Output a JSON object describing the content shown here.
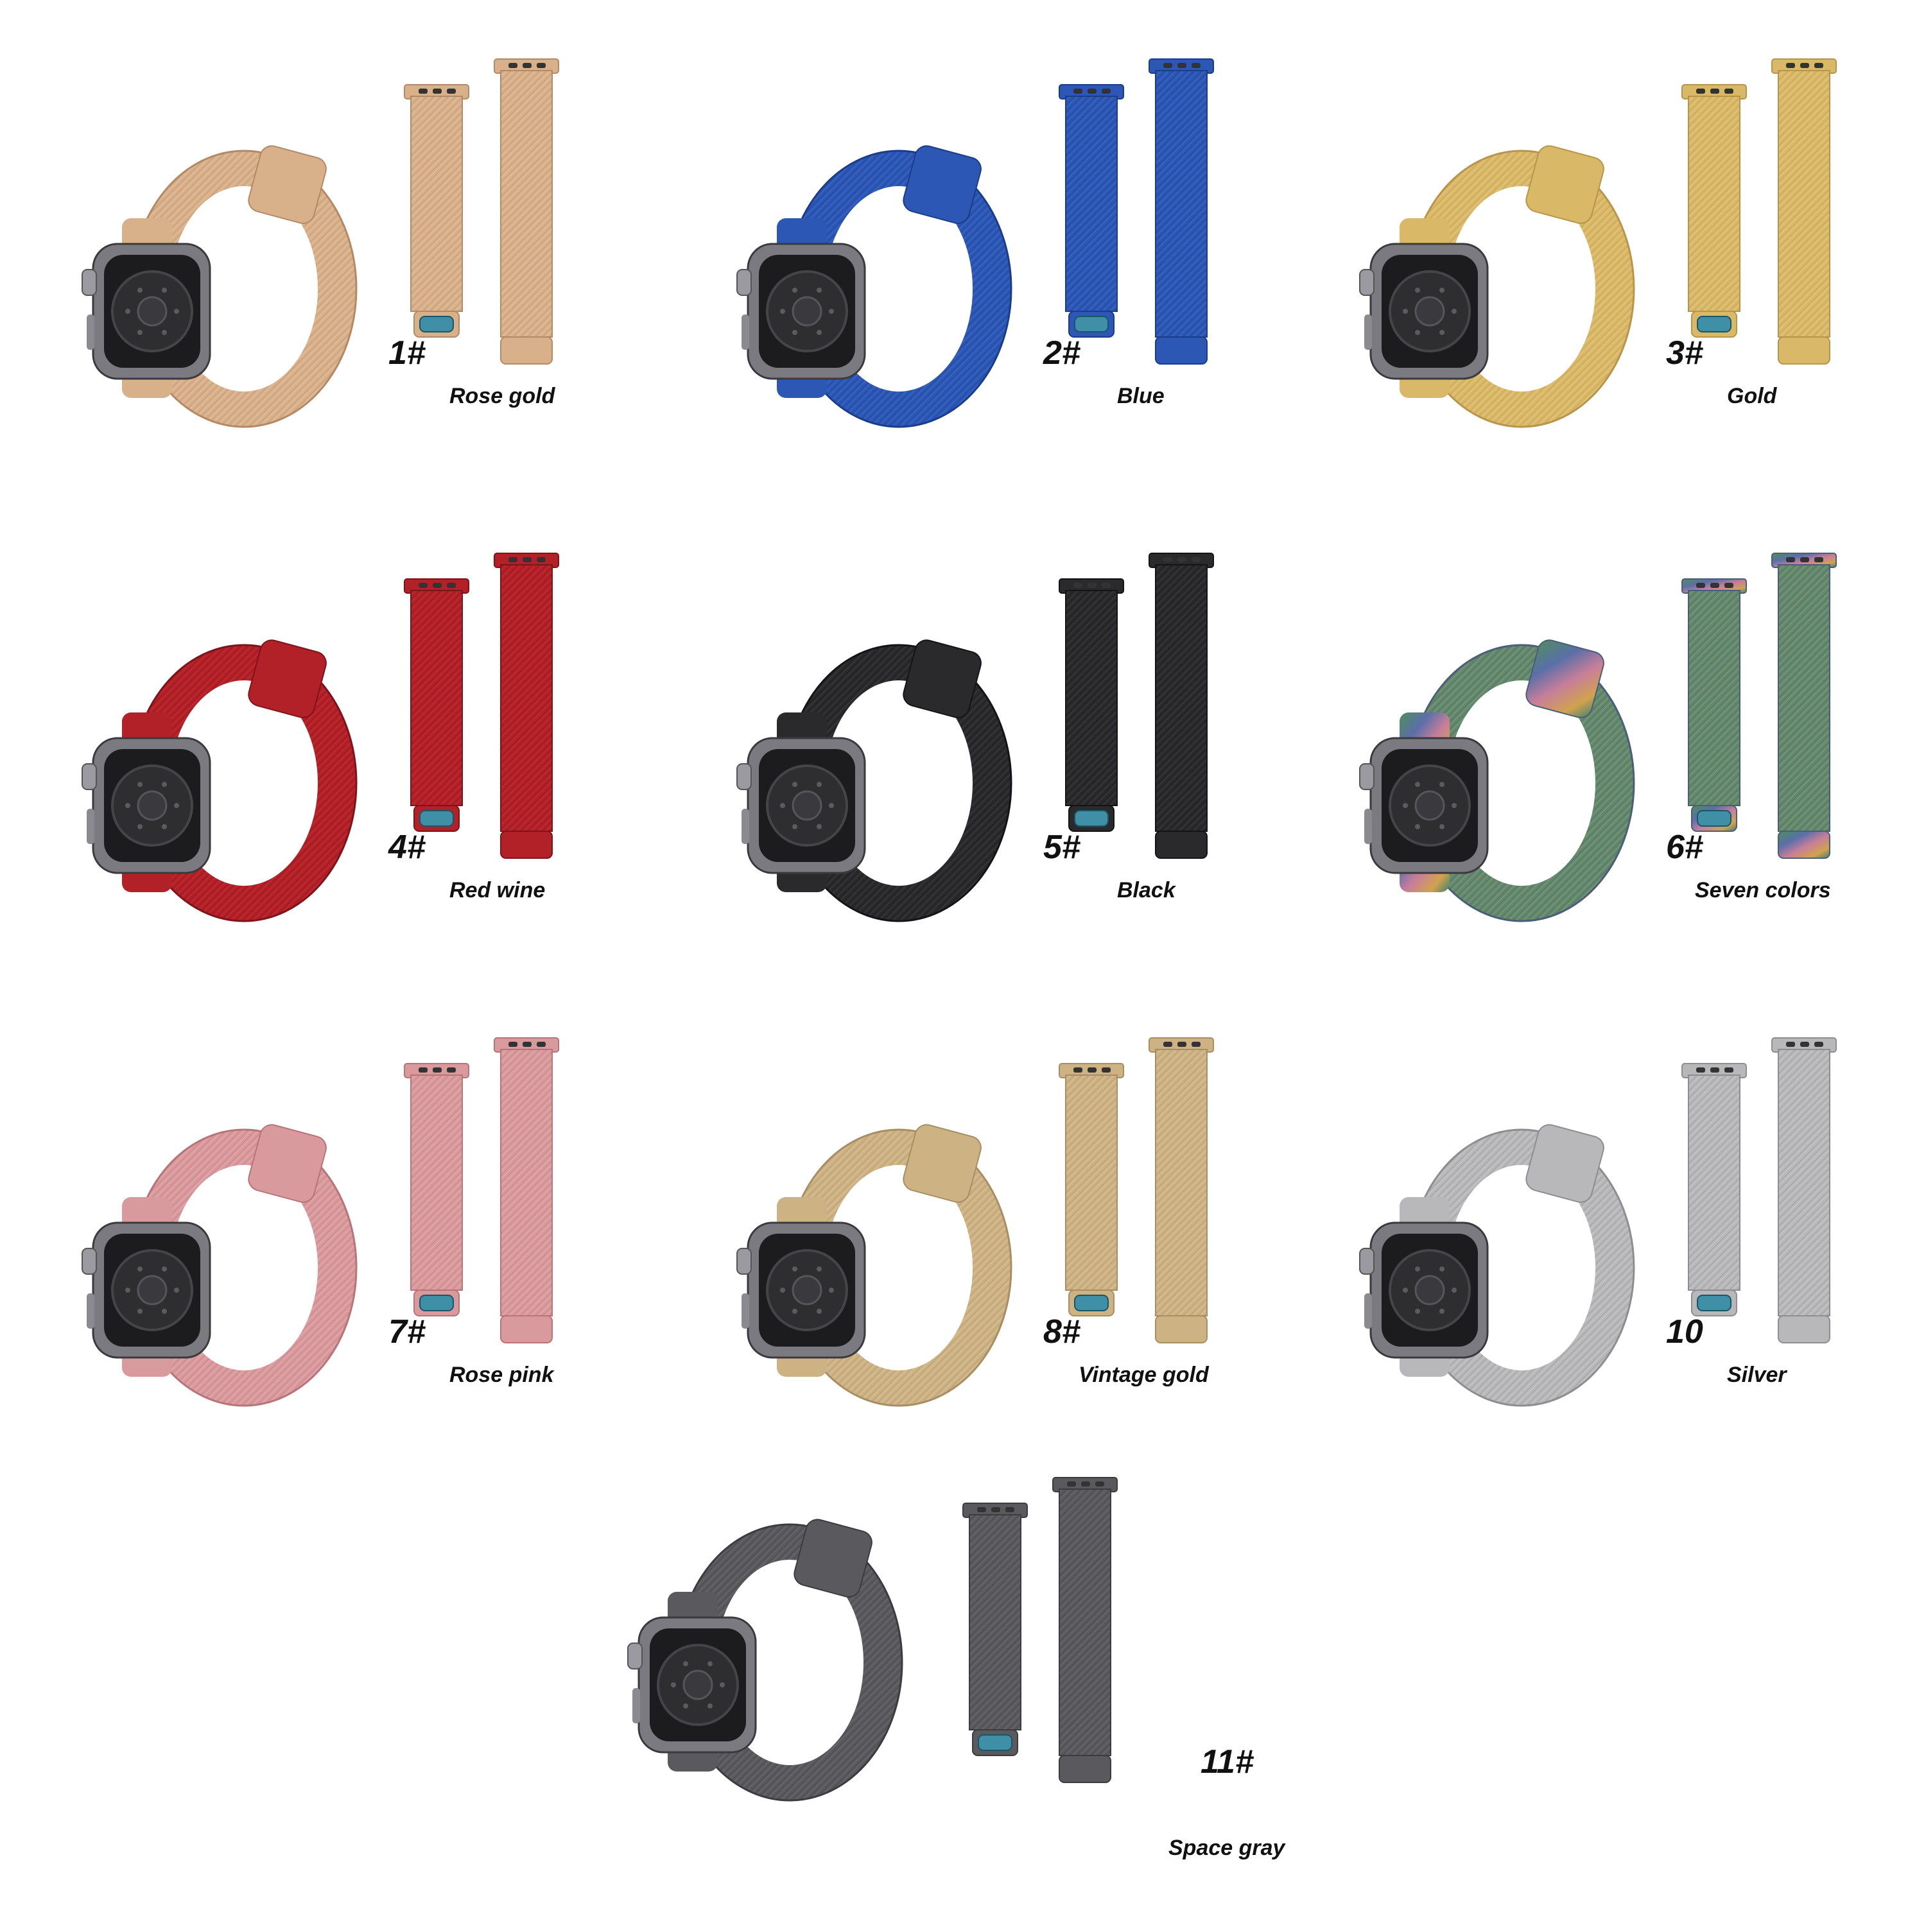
{
  "variants": [
    {
      "number": "1#",
      "name": "Rose gold",
      "colors": {
        "base": "#D8B08A",
        "dark": "#B48A66",
        "light": "#EBCFB2"
      }
    },
    {
      "number": "2#",
      "name": "Blue",
      "colors": {
        "base": "#2C57B5",
        "dark": "#1B3C8A",
        "light": "#4A78D6"
      }
    },
    {
      "number": "3#",
      "name": "Gold",
      "colors": {
        "base": "#D9B868",
        "dark": "#B8954A",
        "light": "#ECD596"
      }
    },
    {
      "number": "4#",
      "name": "Red wine",
      "colors": {
        "base": "#B32128",
        "dark": "#7E141A",
        "light": "#D9343A"
      }
    },
    {
      "number": "5#",
      "name": "Black",
      "colors": {
        "base": "#2A2A2C",
        "dark": "#141416",
        "light": "#48484C"
      }
    },
    {
      "number": "6#",
      "name": "Seven colors",
      "colors": {
        "base": "#5E8A6E",
        "dark": "#4A5E7A",
        "light": "#C89A5A"
      }
    },
    {
      "number": "7#",
      "name": "Rose pink",
      "colors": {
        "base": "#D99A9E",
        "dark": "#B87478",
        "light": "#EDB8BA"
      }
    },
    {
      "number": "8#",
      "name": "Vintage gold",
      "colors": {
        "base": "#CDB284",
        "dark": "#A88E62",
        "light": "#E2CDA6"
      }
    },
    {
      "number": "10",
      "name": "Silver",
      "colors": {
        "base": "#B8B8BA",
        "dark": "#8E8E92",
        "light": "#D4D4D6"
      }
    },
    {
      "number": "11#",
      "name": "Space gray",
      "colors": {
        "base": "#5A5A5E",
        "dark": "#3C3C40",
        "light": "#78787C"
      }
    }
  ]
}
